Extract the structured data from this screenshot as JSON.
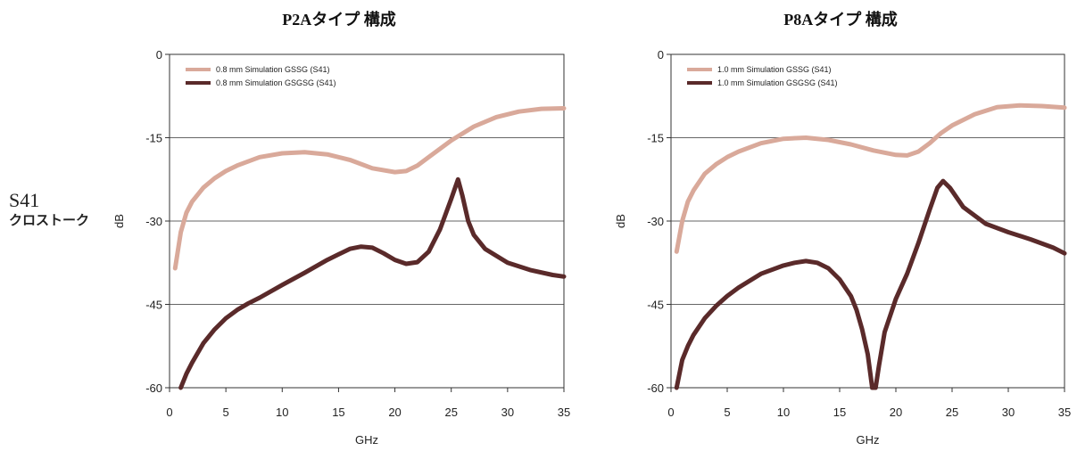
{
  "row_label": {
    "main": "S41",
    "sub": "クロストーク"
  },
  "chart_data": [
    {
      "type": "line",
      "title": "P2Aタイプ 構成",
      "xlabel": "GHz",
      "ylabel": "dB",
      "xlim": [
        0,
        35
      ],
      "ylim": [
        -60,
        0
      ],
      "xticks": [
        0,
        5,
        10,
        15,
        20,
        25,
        30,
        35
      ],
      "yticks": [
        0,
        -15,
        -30,
        -45,
        -60
      ],
      "grid": "horizontal",
      "legend_position": "top-left",
      "series": [
        {
          "name": "0.8 mm Simulation GSSG (S41)",
          "color": "#d9a99a",
          "x": [
            0.5,
            1,
            1.5,
            2,
            3,
            4,
            5,
            6,
            8,
            10,
            12,
            14,
            16,
            18,
            20,
            21,
            22,
            23,
            25,
            27,
            29,
            31,
            33,
            35
          ],
          "y": [
            -38.5,
            -32,
            -28.5,
            -26.5,
            -24,
            -22.3,
            -21,
            -20,
            -18.5,
            -17.8,
            -17.6,
            -18,
            -19,
            -20.5,
            -21.2,
            -21,
            -20,
            -18.5,
            -15.5,
            -13,
            -11.3,
            -10.3,
            -9.8,
            -9.7
          ]
        },
        {
          "name": "0.8 mm Simulation GSGSG (S41)",
          "color": "#5a2a2a",
          "x": [
            1,
            1.5,
            2,
            3,
            4,
            5,
            6,
            7,
            8,
            10,
            12,
            14,
            15,
            16,
            17,
            18,
            19,
            20,
            21,
            22,
            23,
            24,
            25,
            25.6,
            26,
            26.5,
            27,
            28,
            30,
            32,
            34,
            35
          ],
          "y": [
            -60,
            -57.5,
            -55.5,
            -52,
            -49.5,
            -47.5,
            -46,
            -44.8,
            -43.8,
            -41.5,
            -39.3,
            -37,
            -36,
            -35,
            -34.6,
            -34.8,
            -35.8,
            -37,
            -37.7,
            -37.4,
            -35.5,
            -31.5,
            -26,
            -22.5,
            -25.5,
            -30,
            -32.5,
            -35,
            -37.5,
            -38.8,
            -39.7,
            -40
          ]
        }
      ]
    },
    {
      "type": "line",
      "title": "P8Aタイプ 構成",
      "xlabel": "GHz",
      "ylabel": "dB",
      "xlim": [
        0,
        35
      ],
      "ylim": [
        -60,
        0
      ],
      "xticks": [
        0,
        5,
        10,
        15,
        20,
        25,
        30,
        35
      ],
      "yticks": [
        0,
        -15,
        -30,
        -45,
        -60
      ],
      "grid": "horizontal",
      "legend_position": "top-left",
      "series": [
        {
          "name": "1.0 mm Simulation GSSG (S41)",
          "color": "#d9a99a",
          "x": [
            0.5,
            1,
            1.5,
            2,
            3,
            4,
            5,
            6,
            8,
            10,
            12,
            14,
            16,
            18,
            20,
            21,
            22,
            23,
            24,
            25,
            27,
            29,
            31,
            33,
            35
          ],
          "y": [
            -35.5,
            -30,
            -26.5,
            -24.5,
            -21.5,
            -19.8,
            -18.5,
            -17.5,
            -16,
            -15.2,
            -15,
            -15.4,
            -16.2,
            -17.3,
            -18.1,
            -18.2,
            -17.5,
            -16,
            -14.2,
            -12.8,
            -10.8,
            -9.5,
            -9.2,
            -9.3,
            -9.6
          ]
        },
        {
          "name": "1.0 mm Simulation GSGSG (S41)",
          "color": "#5a2a2a",
          "x": [
            0.5,
            1,
            1.5,
            2,
            3,
            4,
            5,
            6,
            8,
            10,
            11,
            12,
            13,
            14,
            15,
            16,
            16.5,
            17,
            17.5,
            17.9,
            18.2,
            18.5,
            19,
            20,
            21,
            22,
            23,
            23.7,
            24.2,
            24.8,
            26,
            28,
            30,
            32,
            34,
            35
          ],
          "y": [
            -60,
            -55,
            -52.5,
            -50.5,
            -47.5,
            -45.3,
            -43.5,
            -42,
            -39.5,
            -38,
            -37.5,
            -37.2,
            -37.5,
            -38.5,
            -40.5,
            -43.5,
            -46,
            -49.5,
            -54,
            -60,
            -60,
            -56,
            -50,
            -44,
            -39.5,
            -34,
            -28,
            -24,
            -22.8,
            -24,
            -27.5,
            -30.5,
            -32,
            -33.3,
            -34.8,
            -35.8
          ]
        }
      ]
    }
  ]
}
